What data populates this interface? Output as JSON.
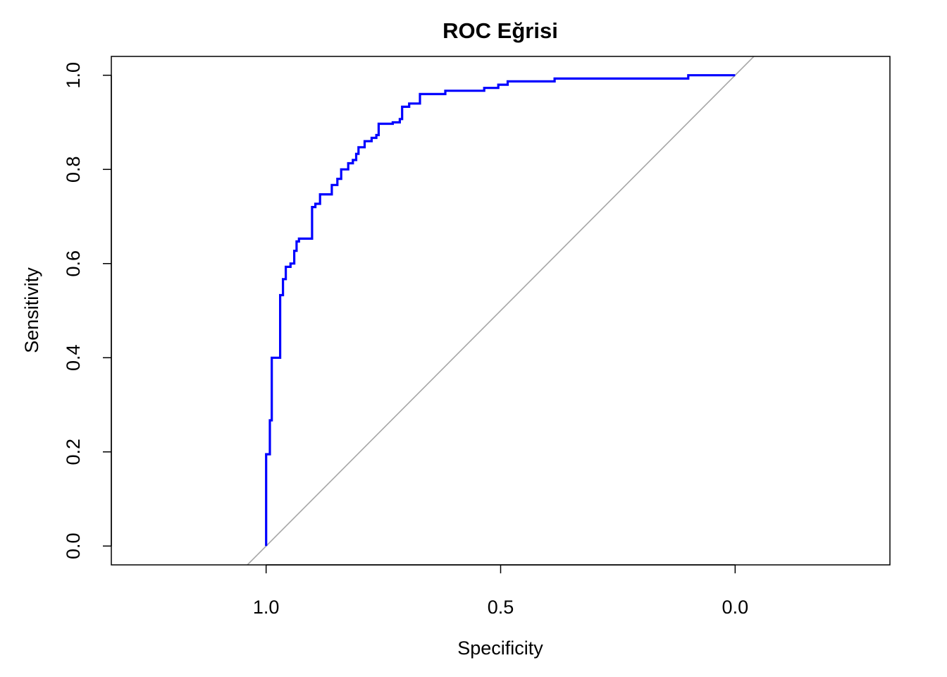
{
  "chart_data": {
    "type": "line",
    "title": "ROC Eğrisi",
    "xlabel": "Specificity",
    "ylabel": "Sensitivity",
    "x_reversed": true,
    "xlim": [
      1.33,
      -0.33
    ],
    "ylim": [
      -0.04,
      1.04
    ],
    "x_ticks": [
      1.0,
      0.5,
      0.0
    ],
    "x_tick_labels": [
      "1.0",
      "0.5",
      "0.0"
    ],
    "y_ticks": [
      0.0,
      0.2,
      0.4,
      0.6,
      0.8,
      1.0
    ],
    "y_tick_labels": [
      "0.0",
      "0.2",
      "0.4",
      "0.6",
      "0.8",
      "1.0"
    ],
    "grid": false,
    "reference_line": {
      "description": "diagonal",
      "color": "#a6a6a6"
    },
    "series": [
      {
        "color": "#0000ff",
        "points": [
          [
            1.0,
            0.0
          ],
          [
            1.0,
            0.195
          ],
          [
            0.992,
            0.195
          ],
          [
            0.992,
            0.267
          ],
          [
            0.988,
            0.267
          ],
          [
            0.988,
            0.4
          ],
          [
            0.97,
            0.4
          ],
          [
            0.97,
            0.533
          ],
          [
            0.964,
            0.533
          ],
          [
            0.964,
            0.567
          ],
          [
            0.958,
            0.567
          ],
          [
            0.958,
            0.593
          ],
          [
            0.948,
            0.593
          ],
          [
            0.948,
            0.6
          ],
          [
            0.94,
            0.6
          ],
          [
            0.94,
            0.627
          ],
          [
            0.935,
            0.627
          ],
          [
            0.935,
            0.647
          ],
          [
            0.93,
            0.647
          ],
          [
            0.93,
            0.653
          ],
          [
            0.902,
            0.653
          ],
          [
            0.902,
            0.72
          ],
          [
            0.895,
            0.72
          ],
          [
            0.895,
            0.727
          ],
          [
            0.885,
            0.727
          ],
          [
            0.885,
            0.747
          ],
          [
            0.86,
            0.747
          ],
          [
            0.86,
            0.767
          ],
          [
            0.848,
            0.767
          ],
          [
            0.848,
            0.78
          ],
          [
            0.84,
            0.78
          ],
          [
            0.84,
            0.8
          ],
          [
            0.825,
            0.8
          ],
          [
            0.825,
            0.813
          ],
          [
            0.815,
            0.813
          ],
          [
            0.815,
            0.82
          ],
          [
            0.808,
            0.82
          ],
          [
            0.808,
            0.833
          ],
          [
            0.803,
            0.833
          ],
          [
            0.803,
            0.847
          ],
          [
            0.79,
            0.847
          ],
          [
            0.79,
            0.86
          ],
          [
            0.775,
            0.86
          ],
          [
            0.775,
            0.867
          ],
          [
            0.765,
            0.867
          ],
          [
            0.765,
            0.873
          ],
          [
            0.76,
            0.873
          ],
          [
            0.76,
            0.897
          ],
          [
            0.73,
            0.897
          ],
          [
            0.73,
            0.9
          ],
          [
            0.715,
            0.9
          ],
          [
            0.715,
            0.907
          ],
          [
            0.71,
            0.907
          ],
          [
            0.71,
            0.933
          ],
          [
            0.695,
            0.933
          ],
          [
            0.695,
            0.94
          ],
          [
            0.672,
            0.94
          ],
          [
            0.672,
            0.96
          ],
          [
            0.618,
            0.96
          ],
          [
            0.618,
            0.967
          ],
          [
            0.535,
            0.967
          ],
          [
            0.535,
            0.973
          ],
          [
            0.505,
            0.973
          ],
          [
            0.505,
            0.98
          ],
          [
            0.485,
            0.98
          ],
          [
            0.485,
            0.987
          ],
          [
            0.385,
            0.987
          ],
          [
            0.385,
            0.993
          ],
          [
            0.1,
            0.993
          ],
          [
            0.1,
            1.0
          ],
          [
            0.0,
            1.0
          ]
        ]
      }
    ]
  }
}
